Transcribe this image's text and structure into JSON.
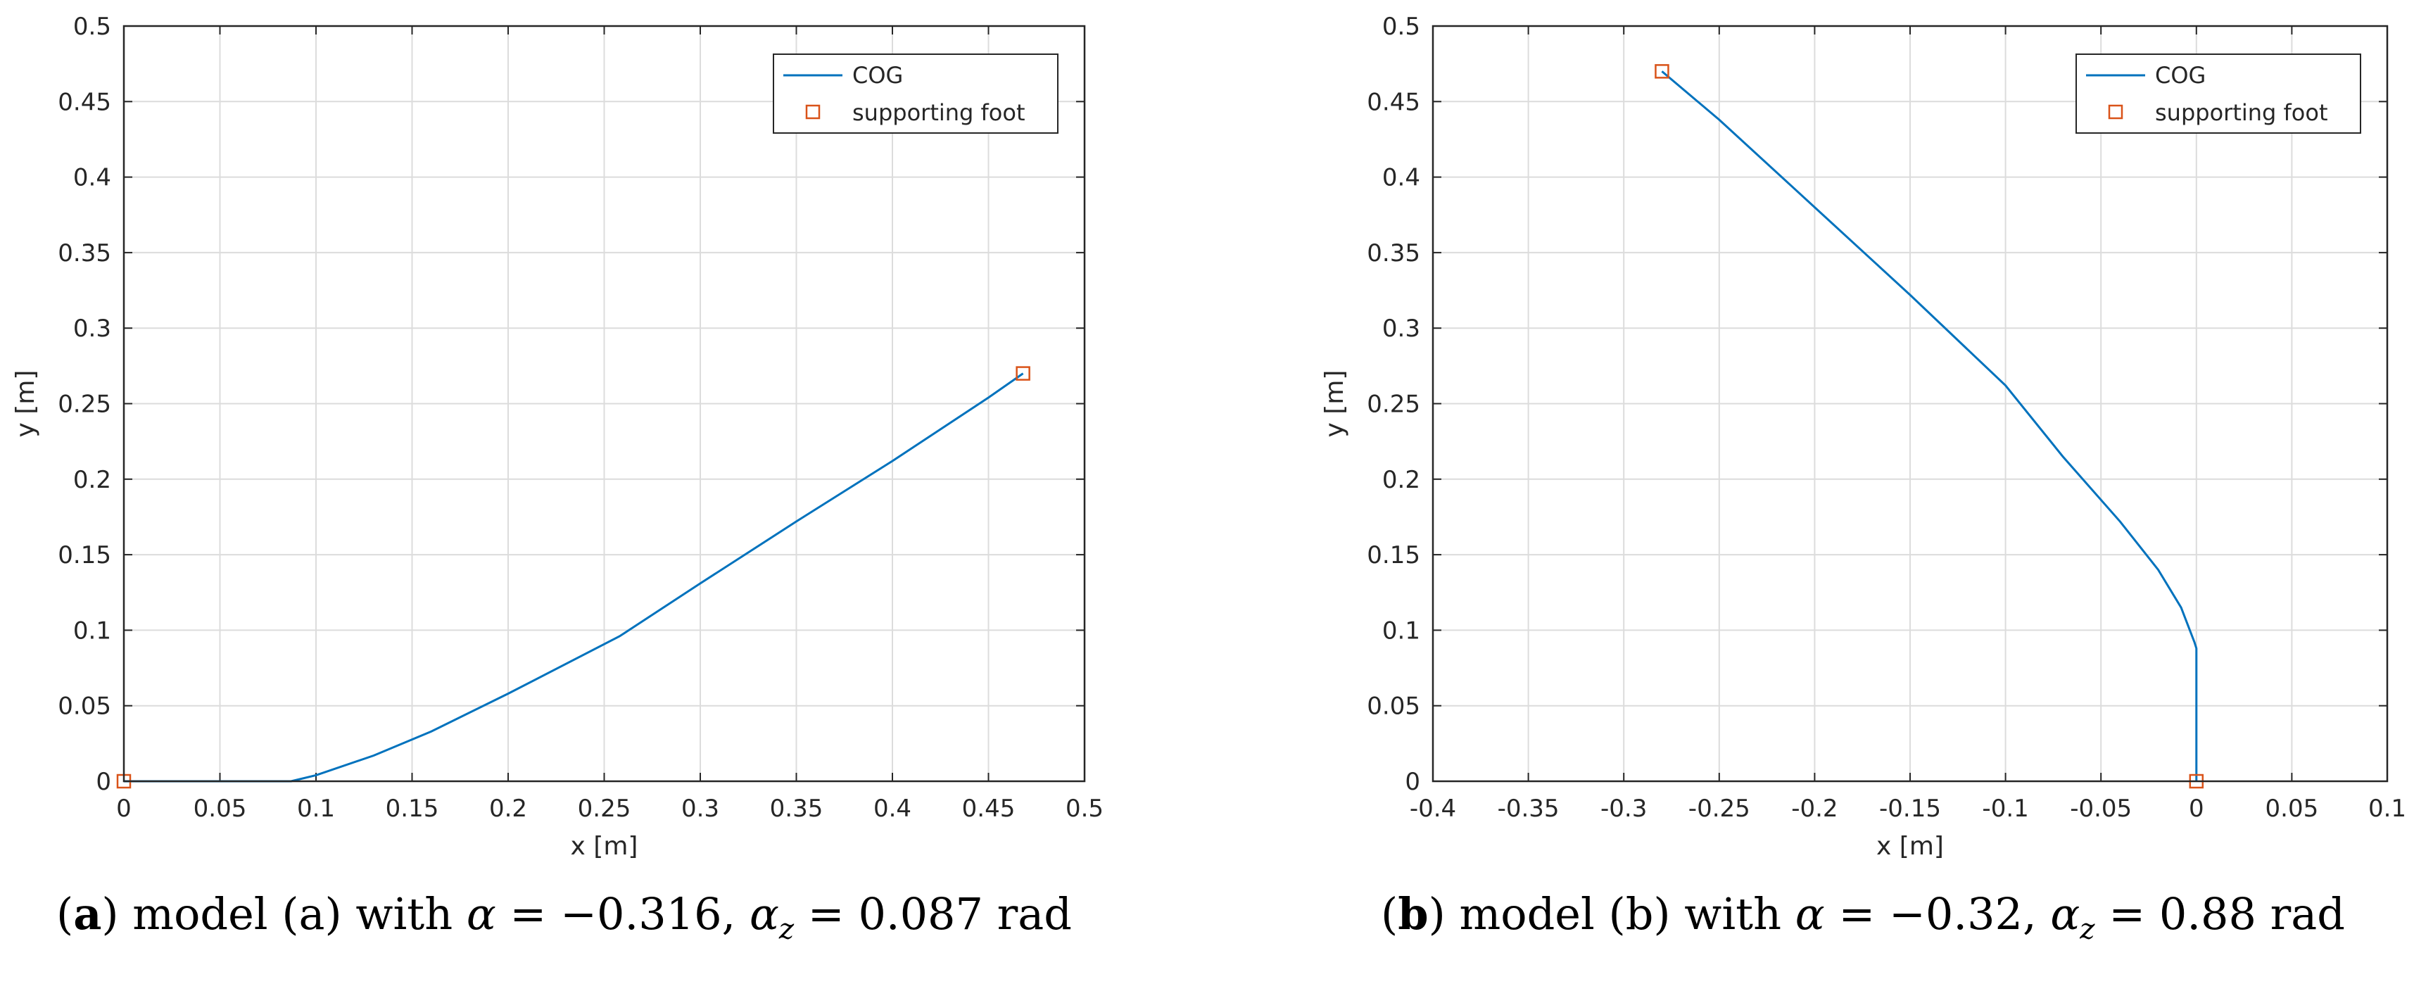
{
  "chart_data": [
    {
      "type": "line",
      "panel": "a",
      "xlabel": "x [m]",
      "ylabel": "y [m]",
      "xlim": [
        0,
        0.5
      ],
      "ylim": [
        0,
        0.5
      ],
      "xticks": [
        0,
        0.05,
        0.1,
        0.15,
        0.2,
        0.25,
        0.3,
        0.35,
        0.4,
        0.45,
        0.5
      ],
      "xtick_labels": [
        "0",
        "0.05",
        "0.1",
        "0.15",
        "0.2",
        "0.25",
        "0.3",
        "0.35",
        "0.4",
        "0.45",
        "0.5"
      ],
      "yticks": [
        0,
        0.05,
        0.1,
        0.15,
        0.2,
        0.25,
        0.3,
        0.35,
        0.4,
        0.45,
        0.5
      ],
      "ytick_labels": [
        "0",
        "0.05",
        "0.1",
        "0.15",
        "0.2",
        "0.25",
        "0.3",
        "0.35",
        "0.4",
        "0.45",
        "0.5"
      ],
      "grid": true,
      "legend_position": "top-right",
      "series": [
        {
          "name": "COG",
          "kind": "line",
          "color": "#0072BD",
          "x": [
            0,
            0.087,
            0.1,
            0.13,
            0.16,
            0.2,
            0.258,
            0.3,
            0.35,
            0.4,
            0.45,
            0.468
          ],
          "y": [
            0,
            0,
            0.004,
            0.017,
            0.033,
            0.058,
            0.096,
            0.131,
            0.172,
            0.212,
            0.254,
            0.27
          ]
        },
        {
          "name": "supporting foot",
          "kind": "marker",
          "color": "#D95319",
          "x": [
            0,
            0.468
          ],
          "y": [
            0,
            0.27
          ]
        }
      ],
      "caption": {
        "label": "a",
        "text": " model (a) with ",
        "alpha": "−0.316",
        "alpha_z": "0.087",
        "unit": "rad"
      }
    },
    {
      "type": "line",
      "panel": "b",
      "xlabel": "x [m]",
      "ylabel": "y [m]",
      "xlim": [
        -0.4,
        0.1
      ],
      "ylim": [
        0,
        0.5
      ],
      "xticks": [
        -0.4,
        -0.35,
        -0.3,
        -0.25,
        -0.2,
        -0.15,
        -0.1,
        -0.05,
        0,
        0.05,
        0.1
      ],
      "xtick_labels": [
        "-0.4",
        "-0.35",
        "-0.3",
        "-0.25",
        "-0.2",
        "-0.15",
        "-0.1",
        "-0.05",
        "0",
        "0.05",
        "0.1"
      ],
      "yticks": [
        0,
        0.05,
        0.1,
        0.15,
        0.2,
        0.25,
        0.3,
        0.35,
        0.4,
        0.45,
        0.5
      ],
      "ytick_labels": [
        "0",
        "0.05",
        "0.1",
        "0.15",
        "0.2",
        "0.25",
        "0.3",
        "0.35",
        "0.4",
        "0.45",
        "0.5"
      ],
      "grid": true,
      "legend_position": "top-right",
      "series": [
        {
          "name": "COG",
          "kind": "line",
          "color": "#0072BD",
          "x": [
            -0.28,
            -0.25,
            -0.2,
            -0.15,
            -0.1,
            -0.07,
            -0.04,
            -0.02,
            -0.008,
            -0.001,
            0,
            0
          ],
          "y": [
            0.47,
            0.438,
            0.38,
            0.322,
            0.262,
            0.215,
            0.172,
            0.14,
            0.115,
            0.092,
            0.088,
            0
          ]
        },
        {
          "name": "supporting foot",
          "kind": "marker",
          "color": "#D95319",
          "x": [
            -0.28,
            0
          ],
          "y": [
            0.47,
            0
          ]
        }
      ],
      "caption": {
        "label": "b",
        "text": " model (b) with ",
        "alpha": "−0.32",
        "alpha_z": "0.88",
        "unit": "rad"
      }
    }
  ]
}
